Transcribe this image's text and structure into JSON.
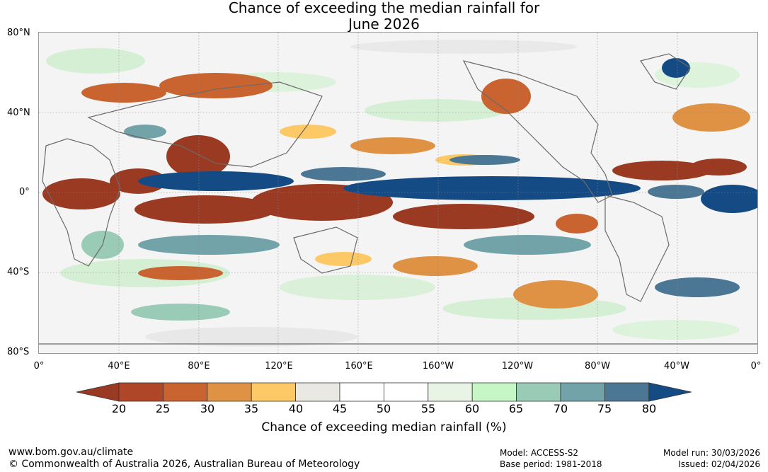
{
  "title": {
    "line1": "Chance of exceeding the median rainfall for",
    "line2": "June 2026"
  },
  "map": {
    "lat_labels": [
      "80°N",
      "40°N",
      "0°",
      "40°S",
      "80°S"
    ],
    "lon_labels": [
      "0°",
      "40°E",
      "80°E",
      "120°E",
      "160°E",
      "160°W",
      "120°W",
      "80°W",
      "40°W",
      "0°"
    ]
  },
  "colorbar": {
    "ticks": [
      "20",
      "25",
      "30",
      "35",
      "40",
      "45",
      "50",
      "55",
      "60",
      "65",
      "70",
      "75",
      "80"
    ],
    "colors": [
      "#9b3a22",
      "#b04628",
      "#c96431",
      "#e09244",
      "#fdc967",
      "#e9e8e3",
      "#ffffff",
      "#ffffff",
      "#e8f4e6",
      "#c6f5c6",
      "#9acbb6",
      "#72a3a9",
      "#4b7694",
      "#144b85"
    ],
    "title": "Chance of exceeding median rainfall (%)"
  },
  "footer": {
    "url": "www.bom.gov.au/climate",
    "copyright": "© Commonwealth of Australia 2026, Australian Bureau of Meteorology",
    "model": "Model: ACCESS-S2",
    "base_period": "Base period: 1981-2018",
    "model_run": "Model run: 30/03/2026",
    "issued": "Issued: 02/04/2026"
  }
}
